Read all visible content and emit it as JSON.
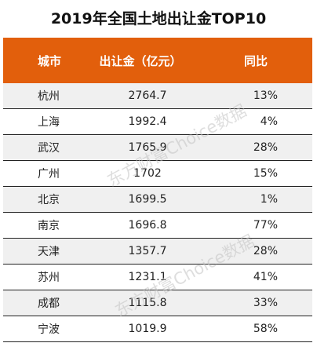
{
  "title": "2019年全国土地出让金TOP10",
  "table": {
    "headers": [
      "城市",
      "出让金（亿元）",
      "同比"
    ],
    "rows": [
      {
        "city": "杭州",
        "amount": "2764.7",
        "yoy": "13%"
      },
      {
        "city": "上海",
        "amount": "1992.4",
        "yoy": "4%"
      },
      {
        "city": "武汉",
        "amount": "1765.9",
        "yoy": "28%"
      },
      {
        "city": "广州",
        "amount": "1702",
        "yoy": "15%"
      },
      {
        "city": "北京",
        "amount": "1699.5",
        "yoy": "1%"
      },
      {
        "city": "南京",
        "amount": "1696.8",
        "yoy": "77%"
      },
      {
        "city": "天津",
        "amount": "1357.7",
        "yoy": "28%"
      },
      {
        "city": "苏州",
        "amount": "1231.1",
        "yoy": "41%"
      },
      {
        "city": "成都",
        "amount": "1115.8",
        "yoy": "33%"
      },
      {
        "city": "宁波",
        "amount": "1019.9",
        "yoy": "58%"
      }
    ]
  },
  "watermark": "东方财富Choice数据",
  "colors": {
    "header_bg": "#e25f0c",
    "header_text": "#ffffff",
    "row_alt_bg": "#f0f0f0"
  }
}
